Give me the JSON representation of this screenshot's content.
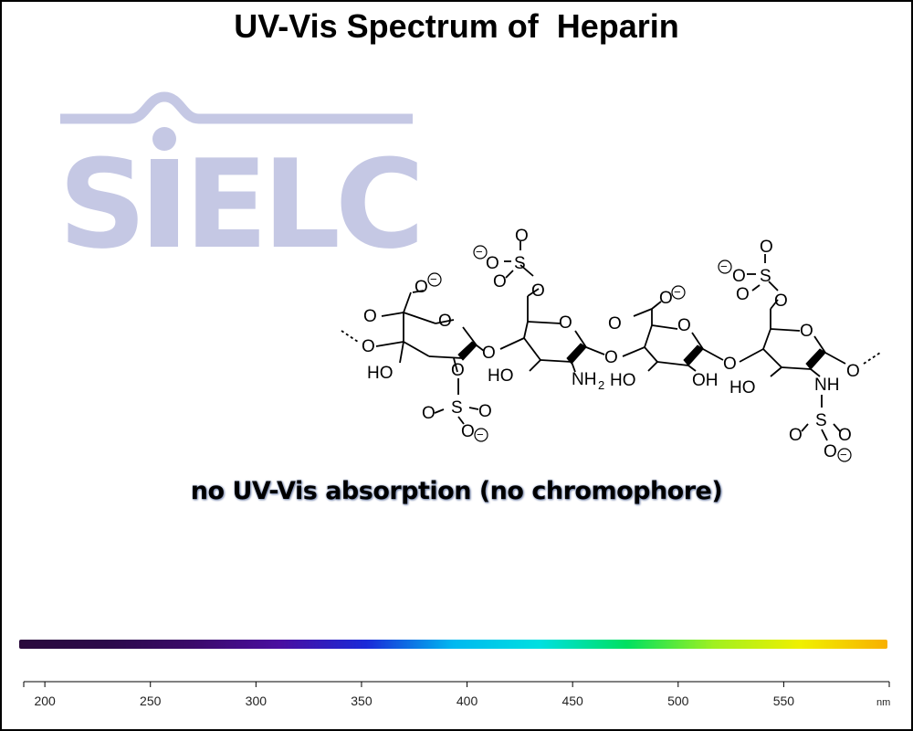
{
  "chart_data": {
    "type": "line",
    "title": "UV-Vis Spectrum of  Heparin",
    "annotation": "no UV-Vis absorption (no chromophore)",
    "xlabel": "nm",
    "ylabel": "",
    "x_ticks": [
      200,
      250,
      300,
      350,
      400,
      450,
      500,
      550
    ],
    "xlim": [
      190,
      600
    ],
    "series": []
  },
  "logo": {
    "text": "SIELC",
    "color": "#c5c8e4"
  },
  "spectrum_bar": {
    "colors": [
      "#2a0a3c",
      "#2b0a4a",
      "#3b0a6a",
      "#4a0ea0",
      "#1a2ad8",
      "#00b8f0",
      "#00e0e0",
      "#00e060",
      "#a0f020",
      "#f0f000",
      "#f8b000"
    ]
  },
  "molecule": {
    "atoms": {
      "o": "O",
      "oh": "HO",
      "oh_right": "OH",
      "s": "S",
      "nh2": "NH",
      "two": "2",
      "nh": "NH",
      "minus": "−"
    }
  }
}
